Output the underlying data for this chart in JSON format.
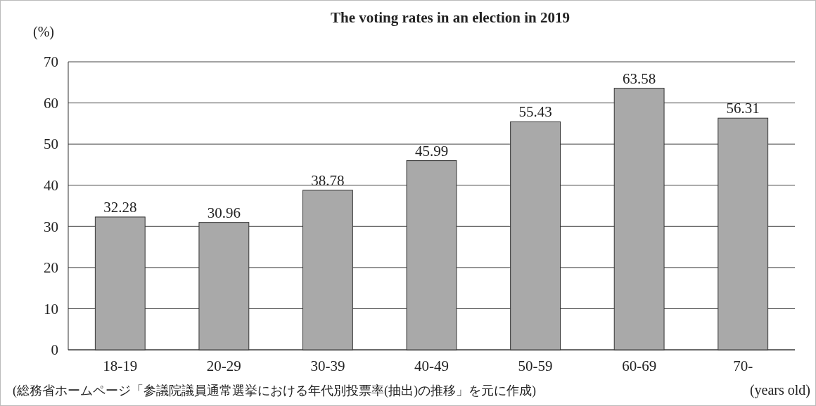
{
  "chart_data": {
    "type": "bar",
    "title": "The voting rates in an election in 2019",
    "ylabel": "(%)",
    "xlabel": "(years old)",
    "categories": [
      "18-19",
      "20-29",
      "30-39",
      "40-49",
      "50-59",
      "60-69",
      "70-"
    ],
    "values": [
      32.28,
      30.96,
      38.78,
      45.99,
      55.43,
      63.58,
      56.31
    ],
    "color": "#a9a9a9",
    "ylim": [
      0,
      70
    ],
    "yticks": [
      0,
      10,
      20,
      30,
      40,
      50,
      60,
      70
    ],
    "grid": "y",
    "data_labels": true,
    "annotations": [
      "(総務省ホームページ「参議院議員通常選挙における年代別投票率(抽出)の推移」を元に作成)"
    ]
  }
}
